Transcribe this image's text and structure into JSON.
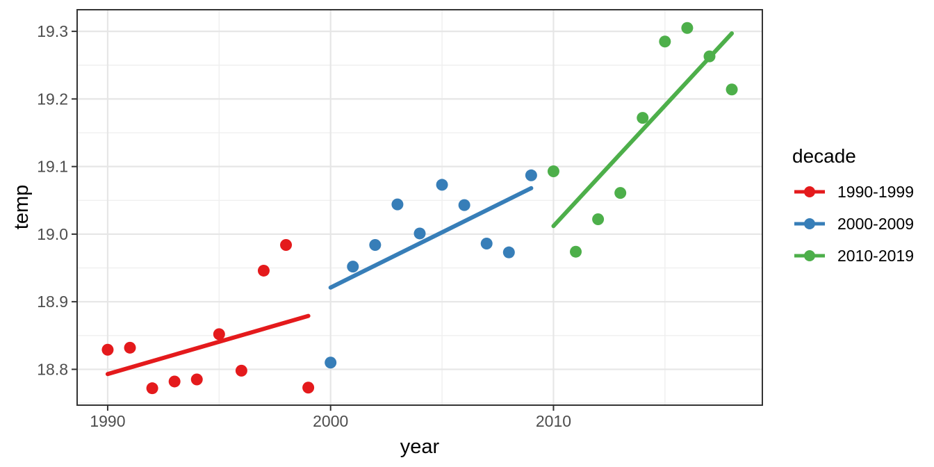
{
  "chart_data": {
    "type": "scatter",
    "title": "",
    "xlabel": "year",
    "ylabel": "temp",
    "legend_title": "decade",
    "legend_position": "right",
    "grid": "on",
    "xlim": [
      1988.63,
      2019.37
    ],
    "ylim": [
      18.747,
      19.332
    ],
    "x_major_ticks": [
      1990,
      2000,
      2010
    ],
    "x_minor_ticks": [
      1995,
      2005,
      2015
    ],
    "y_major_ticks": [
      18.8,
      18.9,
      19.0,
      19.1,
      19.2,
      19.3
    ],
    "y_minor_ticks": [
      18.75,
      18.85,
      18.95,
      19.05,
      19.15,
      19.25
    ],
    "colors": {
      "grid_major": "#e6e6e6",
      "grid_minor": "#efefef",
      "panel_border": "#333333",
      "tick_mark": "#333333",
      "tick_label": "#4d4d4d",
      "axis_title": "#000000"
    },
    "series": [
      {
        "name": "1990-1999",
        "color": "#e41a1c",
        "x": [
          1990,
          1991,
          1992,
          1993,
          1994,
          1995,
          1996,
          1997,
          1998,
          1999
        ],
        "y": [
          18.829,
          18.832,
          18.772,
          18.782,
          18.785,
          18.852,
          18.798,
          18.946,
          18.984,
          18.773
        ],
        "trend": {
          "x1": 1990,
          "y1": 18.793,
          "x2": 1999,
          "y2": 18.879
        }
      },
      {
        "name": "2000-2009",
        "color": "#377eb8",
        "x": [
          2000,
          2001,
          2002,
          2003,
          2004,
          2005,
          2006,
          2007,
          2008,
          2009
        ],
        "y": [
          18.81,
          18.952,
          18.984,
          19.044,
          19.001,
          19.073,
          19.043,
          18.986,
          18.973,
          19.087
        ],
        "trend": {
          "x1": 2000,
          "y1": 18.921,
          "x2": 2009,
          "y2": 19.068
        }
      },
      {
        "name": "2010-2019",
        "color": "#4daf4a",
        "x": [
          2010,
          2011,
          2012,
          2013,
          2014,
          2015,
          2016,
          2017,
          2018
        ],
        "y": [
          19.093,
          18.974,
          19.022,
          19.061,
          19.172,
          19.285,
          19.305,
          19.263,
          19.214
        ],
        "trend": {
          "x1": 2010,
          "y1": 19.012,
          "x2": 2018,
          "y2": 19.297
        }
      }
    ]
  }
}
